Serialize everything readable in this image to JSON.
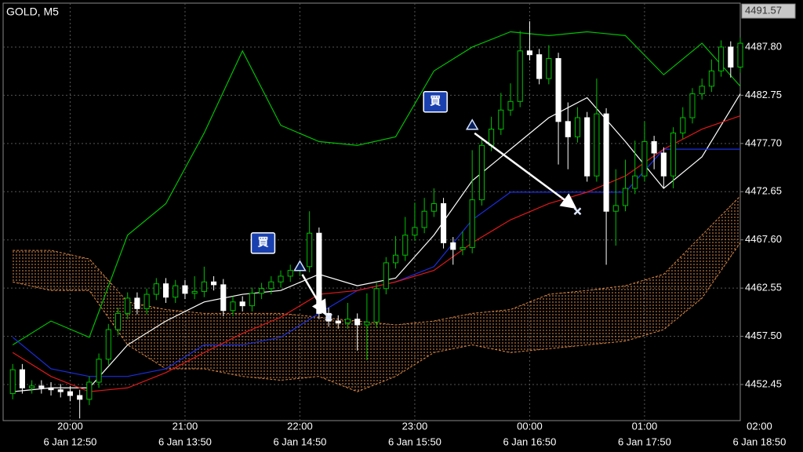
{
  "chart_data": {
    "type": "candlestick",
    "title": "GOLD, M5",
    "current_price": 4491.57,
    "ylim": [
      4448.67,
      4492.4
    ],
    "yticks": [
      {
        "value": 4452.45,
        "label": "4452.45"
      },
      {
        "value": 4457.5,
        "label": "4457.50"
      },
      {
        "value": 4462.55,
        "label": "4462.55"
      },
      {
        "value": 4467.6,
        "label": "4467.60"
      },
      {
        "value": 4472.65,
        "label": "4472.65"
      },
      {
        "value": 4477.7,
        "label": "4477.70"
      },
      {
        "value": 4482.75,
        "label": "4482.75"
      },
      {
        "value": 4487.8,
        "label": "4487.80"
      }
    ],
    "xlim": [
      -1,
      76
    ],
    "xticks": [
      {
        "value": 6,
        "label": "20:00"
      },
      {
        "value": 18,
        "label": "21:00"
      },
      {
        "value": 30,
        "label": "22:00"
      },
      {
        "value": 42,
        "label": "23:00"
      },
      {
        "value": 54,
        "label": "00:00"
      },
      {
        "value": 66,
        "label": "01:00"
      },
      {
        "value": 78,
        "label": "02:00"
      }
    ],
    "xticks_bottom": [
      {
        "value": 6,
        "label": "6 Jan 12:50"
      },
      {
        "value": 18,
        "label": "6 Jan 13:50"
      },
      {
        "value": 30,
        "label": "6 Jan 14:50"
      },
      {
        "value": 42,
        "label": "6 Jan 15:50"
      },
      {
        "value": 54,
        "label": "6 Jan 16:50"
      },
      {
        "value": 66,
        "label": "6 Jan 17:50"
      },
      {
        "value": 78,
        "label": "6 Jan 18:50"
      }
    ],
    "grid": true,
    "up_color": "#00c000",
    "down_color": "#ffffff",
    "candles": [
      [
        4451.5,
        4454.6,
        4450.9,
        4454.0
      ],
      [
        4454.0,
        4454.6,
        4451.5,
        4452.1
      ],
      [
        4452.1,
        4452.9,
        4451.5,
        4452.3
      ],
      [
        4452.3,
        4452.9,
        4451.5,
        4452.1
      ],
      [
        4452.1,
        4452.7,
        4451.3,
        4451.9
      ],
      [
        4451.9,
        4452.5,
        4451.1,
        4451.7
      ],
      [
        4451.7,
        4452.3,
        4450.7,
        4451.3
      ],
      [
        4451.3,
        4451.9,
        4448.9,
        4450.9
      ],
      [
        4450.9,
        4453.3,
        4450.3,
        4452.7
      ],
      [
        4452.7,
        4455.7,
        4452.1,
        4455.1
      ],
      [
        4455.1,
        4458.8,
        4454.5,
        4458.2
      ],
      [
        4458.2,
        4460.5,
        4457.6,
        4459.9
      ],
      [
        4459.9,
        4462.1,
        4459.3,
        4461.5
      ],
      [
        4461.5,
        4462.1,
        4459.8,
        4460.4
      ],
      [
        4460.4,
        4462.5,
        4459.8,
        4461.9
      ],
      [
        4461.9,
        4463.6,
        4461.3,
        4463.0
      ],
      [
        4463.0,
        4463.6,
        4461.0,
        4461.6
      ],
      [
        4461.6,
        4463.4,
        4461.0,
        4462.8
      ],
      [
        4462.8,
        4463.4,
        4461.4,
        4462.0
      ],
      [
        4462.0,
        4463.8,
        4461.4,
        4462.2
      ],
      [
        4462.2,
        4464.8,
        4461.6,
        4463.2
      ],
      [
        4463.2,
        4463.8,
        4462.3,
        4462.9
      ],
      [
        4462.9,
        4463.5,
        4459.6,
        4460.2
      ],
      [
        4460.2,
        4461.7,
        4459.6,
        4461.1
      ],
      [
        4461.1,
        4461.7,
        4460.1,
        4460.7
      ],
      [
        4460.7,
        4462.6,
        4460.1,
        4462.0
      ],
      [
        4462.0,
        4463.1,
        4461.4,
        4462.5
      ],
      [
        4462.5,
        4463.8,
        4461.9,
        4463.2
      ],
      [
        4463.2,
        4464.4,
        4462.6,
        4463.8
      ],
      [
        4463.8,
        4465.0,
        4463.2,
        4464.4
      ],
      [
        4464.4,
        4465.4,
        4463.8,
        4464.8
      ],
      [
        4464.8,
        4470.6,
        4464.2,
        4468.3
      ],
      [
        4468.3,
        4468.9,
        4459.3,
        4459.9
      ],
      [
        4459.9,
        4460.5,
        4458.5,
        4459.1
      ],
      [
        4459.1,
        4459.7,
        4458.3,
        4458.9
      ],
      [
        4458.9,
        4461.0,
        4458.3,
        4459.3
      ],
      [
        4459.3,
        4459.9,
        4456.0,
        4458.7
      ],
      [
        4458.7,
        4462.0,
        4455.0,
        4459.0
      ],
      [
        4459.0,
        4463.1,
        4458.4,
        4462.5
      ],
      [
        4462.5,
        4465.8,
        4461.9,
        4465.2
      ],
      [
        4465.2,
        4468.0,
        4464.6,
        4466.0
      ],
      [
        4466.0,
        4470.0,
        4465.4,
        4468.1
      ],
      [
        4468.1,
        4471.5,
        4467.5,
        4468.9
      ],
      [
        4468.9,
        4472.0,
        4468.3,
        4470.6
      ],
      [
        4470.6,
        4473.0,
        4470.0,
        4471.4
      ],
      [
        4471.4,
        4472.0,
        4466.7,
        4467.3
      ],
      [
        4467.3,
        4467.9,
        4465.0,
        4466.6
      ],
      [
        4466.6,
        4468.5,
        4466.0,
        4466.8
      ],
      [
        4466.8,
        4477.0,
        4466.2,
        4471.8
      ],
      [
        4471.8,
        4478.1,
        4471.2,
        4477.5
      ],
      [
        4477.5,
        4480.5,
        4476.9,
        4479.2
      ],
      [
        4479.2,
        4483.0,
        4478.6,
        4481.2
      ],
      [
        4481.2,
        4484.0,
        4480.6,
        4482.1
      ],
      [
        4482.1,
        4489.5,
        4481.5,
        4487.4
      ],
      [
        4487.4,
        4490.5,
        4486.4,
        4487.0
      ],
      [
        4487.0,
        4487.6,
        4483.9,
        4484.5
      ],
      [
        4484.5,
        4488.0,
        4483.9,
        4486.6
      ],
      [
        4486.6,
        4487.2,
        4475.5,
        4480.0
      ],
      [
        4480.0,
        4482.0,
        4475.0,
        4478.4
      ],
      [
        4478.4,
        4481.5,
        4477.8,
        4480.4
      ],
      [
        4480.4,
        4481.0,
        4473.7,
        4474.3
      ],
      [
        4474.3,
        4484.5,
        4473.7,
        4480.8
      ],
      [
        4480.8,
        4481.4,
        4465.0,
        4470.6
      ],
      [
        4470.6,
        4475.0,
        4467.0,
        4471.2
      ],
      [
        4471.2,
        4476.0,
        4470.6,
        4473.0
      ],
      [
        4473.0,
        4478.0,
        4472.4,
        4474.3
      ],
      [
        4474.3,
        4480.0,
        4473.7,
        4477.9
      ],
      [
        4477.9,
        4478.5,
        4475.0,
        4476.7
      ],
      [
        4476.7,
        4477.3,
        4473.0,
        4474.3
      ],
      [
        4474.3,
        4479.4,
        4473.0,
        4478.8
      ],
      [
        4478.8,
        4481.5,
        4478.2,
        4480.4
      ],
      [
        4480.4,
        4483.5,
        4479.8,
        4482.9
      ],
      [
        4482.9,
        4484.5,
        4482.3,
        4483.7
      ],
      [
        4483.7,
        4486.5,
        4483.1,
        4485.3
      ],
      [
        4485.3,
        4488.5,
        4484.7,
        4487.8
      ],
      [
        4487.8,
        4488.4,
        4484.6,
        4485.7
      ],
      [
        4485.7,
        4488.8,
        4485.1,
        4488.2
      ]
    ],
    "lines": [
      {
        "color": "#00c000",
        "x": [
          0,
          4,
          8,
          12,
          16,
          20,
          24,
          28,
          32,
          36,
          40,
          44,
          48,
          52,
          56,
          60,
          64,
          68,
          72,
          76
        ],
        "values": [
          4456.6,
          4459.1,
          4457.4,
          4468.1,
          4471.4,
          4478.8,
          4487.4,
          4479.6,
          4477.9,
          4477.5,
          4478.4,
          4485.3,
          4487.8,
          4489.4,
          4489.0,
          4489.4,
          4489.0,
          4484.9,
          4488.2,
          4483.7
        ]
      },
      {
        "color": "#ffffff",
        "x": [
          0,
          4,
          8,
          12,
          16,
          20,
          24,
          28,
          32,
          36,
          40,
          44,
          48,
          52,
          56,
          60,
          64,
          68,
          72,
          76
        ],
        "values": [
          4451.7,
          4452.1,
          4452.1,
          4456.6,
          4459.1,
          4461.1,
          4461.9,
          4462.3,
          4464.0,
          4462.8,
          4463.6,
          4468.1,
          4473.8,
          4477.1,
          4480.4,
          4482.5,
          4477.9,
          4473.0,
          4476.3,
          4482.9
        ]
      },
      {
        "color": "#1a2ee0",
        "x": [
          0,
          4,
          8,
          12,
          16,
          20,
          24,
          28,
          32,
          36,
          40,
          44,
          48,
          52,
          56,
          60,
          64,
          68,
          72,
          76
        ],
        "values": [
          4457.4,
          4454.1,
          4453.3,
          4453.3,
          4454.1,
          4456.6,
          4456.6,
          4457.4,
          4459.9,
          4462.3,
          4463.2,
          4464.8,
          4469.7,
          4472.6,
          4472.6,
          4472.6,
          4472.6,
          4477.1,
          4477.1,
          4477.1
        ]
      },
      {
        "color": "#e01818",
        "x": [
          0,
          4,
          8,
          12,
          16,
          20,
          24,
          28,
          32,
          36,
          40,
          44,
          48,
          52,
          56,
          60,
          64,
          68,
          72,
          76
        ],
        "values": [
          4455.8,
          4453.3,
          4451.7,
          4452.1,
          4453.7,
          4455.8,
          4457.8,
          4459.5,
          4461.9,
          4462.3,
          4463.2,
          4464.4,
          4467.3,
          4469.7,
          4471.4,
          4472.6,
          4474.3,
          4477.1,
          4479.2,
          4480.6
        ]
      }
    ],
    "cloud": {
      "color": "#e08a48",
      "x": [
        0,
        4,
        8,
        12,
        16,
        20,
        24,
        28,
        32,
        36,
        40,
        44,
        48,
        52,
        56,
        60,
        64,
        68,
        72,
        76
      ],
      "span_a": [
        4466.5,
        4466.5,
        4465.6,
        4461.1,
        4460.3,
        4459.9,
        4459.9,
        4459.9,
        4459.5,
        4459.1,
        4458.7,
        4459.1,
        4459.9,
        4460.3,
        4461.9,
        4462.3,
        4462.8,
        4464.0,
        4468.1,
        4472.2
      ],
      "span_b": [
        4463.2,
        4462.3,
        4462.3,
        4456.6,
        4454.1,
        4454.1,
        4453.3,
        4452.9,
        4453.3,
        4451.7,
        4453.3,
        4455.8,
        4456.6,
        4455.8,
        4456.2,
        4456.6,
        4457.0,
        4458.2,
        4461.5,
        4467.3
      ]
    },
    "trades": [
      {
        "label": "買",
        "entry": [
          30,
          4464.8
        ],
        "exit": [
          33,
          4459.5
        ]
      },
      {
        "label": "買",
        "entry": [
          48,
          4479.6
        ],
        "exit": [
          59,
          4470.6
        ]
      }
    ]
  }
}
